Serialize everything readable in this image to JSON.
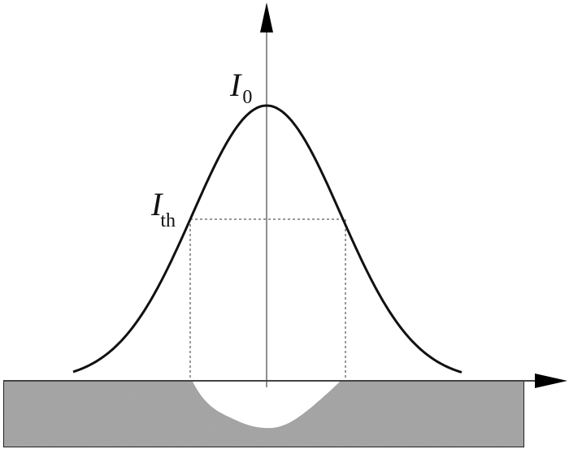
{
  "labels": {
    "peak_symbol": "I",
    "peak_subscript": "0",
    "threshold_symbol": "I",
    "threshold_subscript": "th"
  },
  "colors": {
    "curve": "#111111",
    "substrate": "#a9a9a9",
    "crater": "#ffffff",
    "guide_lines": "#777777"
  }
}
